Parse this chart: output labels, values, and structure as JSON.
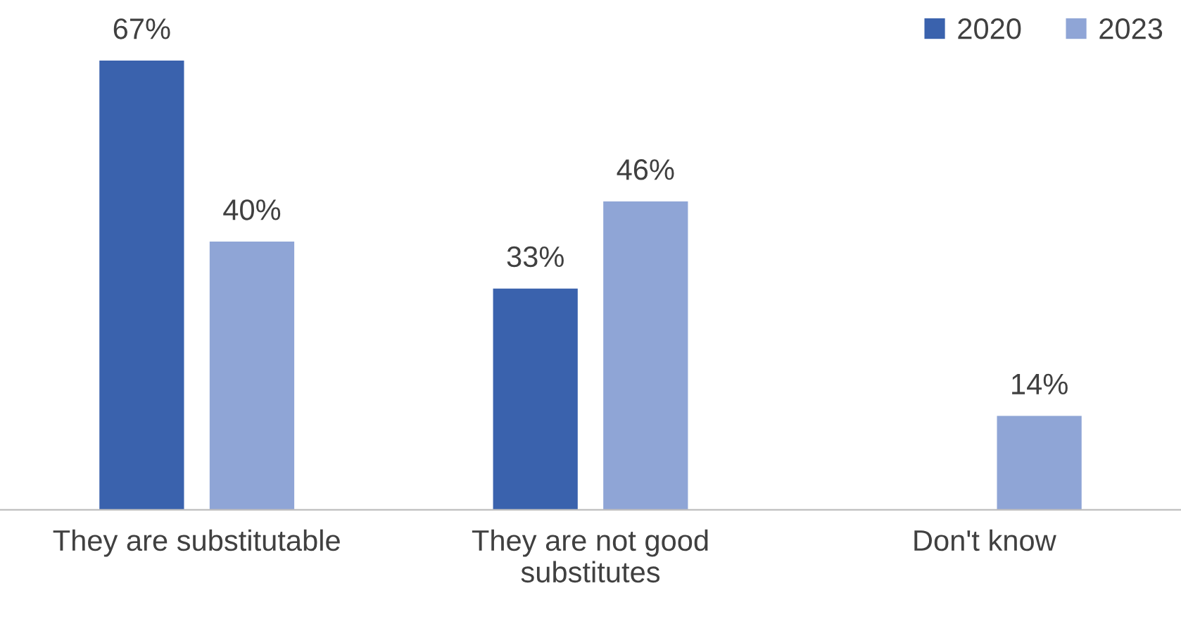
{
  "chart_data": {
    "type": "bar",
    "categories": [
      "They are substitutable",
      "They are not good\nsubstitutes",
      "Don't know"
    ],
    "series": [
      {
        "name": "2020",
        "color": "#3a62ad",
        "values": [
          67,
          33,
          null
        ],
        "value_labels": [
          "67%",
          "33%",
          null
        ]
      },
      {
        "name": "2023",
        "color": "#8fa5d6",
        "values": [
          40,
          46,
          14
        ],
        "value_labels": [
          "40%",
          "46%",
          "14%"
        ]
      }
    ],
    "tick_labels": "x",
    "legend": "top right"
  }
}
